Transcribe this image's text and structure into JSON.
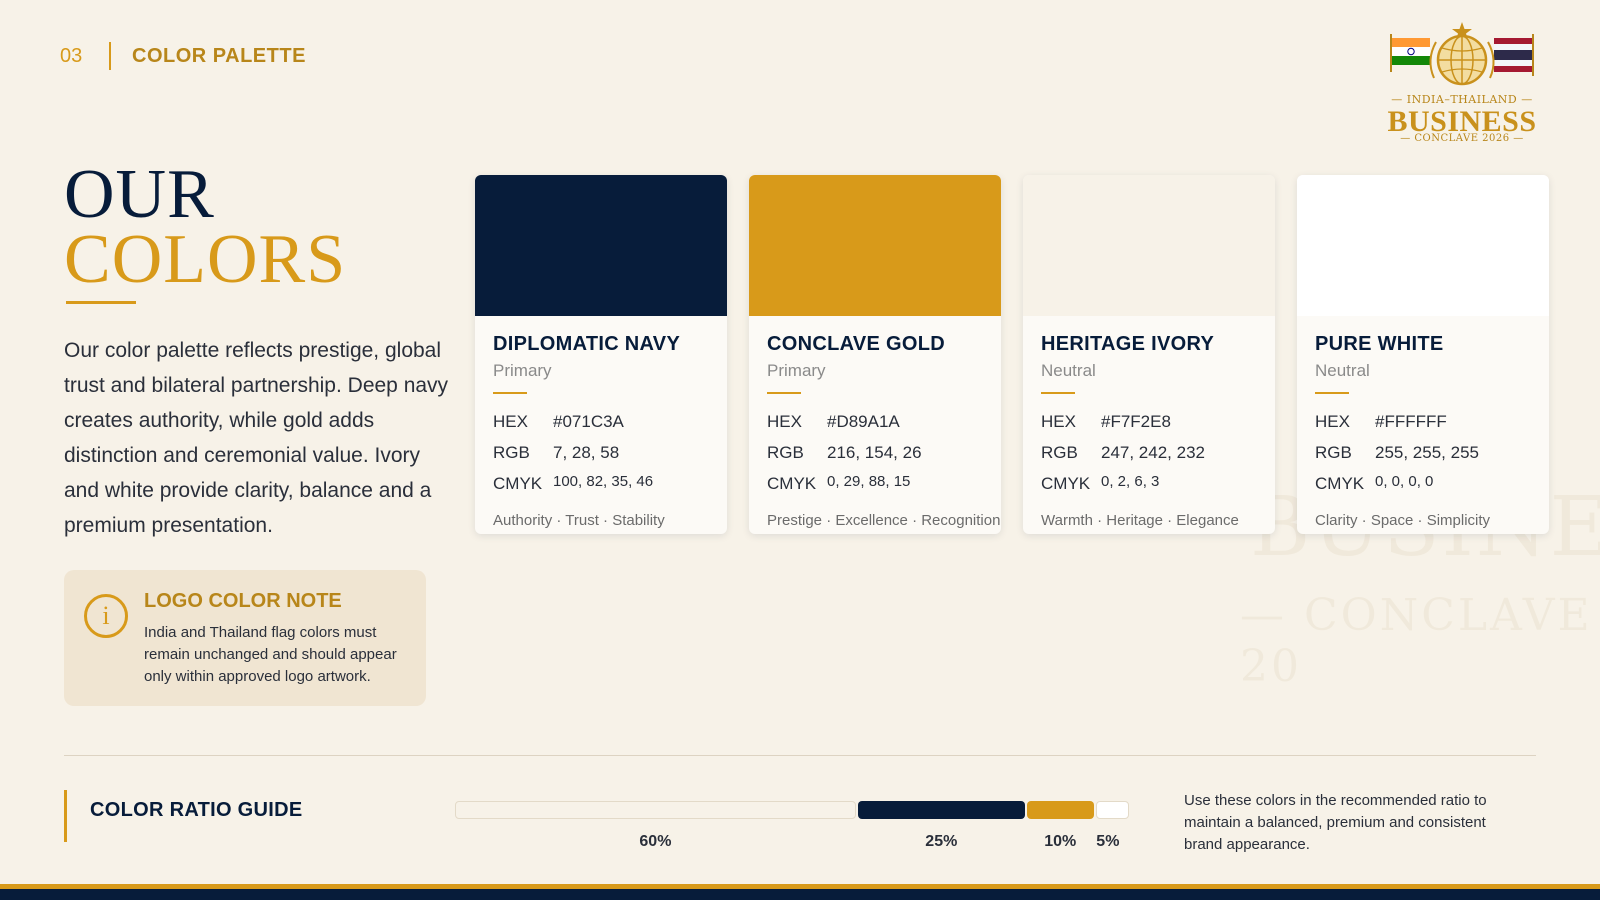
{
  "header": {
    "slide_number": "03",
    "section": "COLOR PALETTE"
  },
  "logo": {
    "line1": "— INDIA–THAILAND —",
    "line2": "BUSINESS",
    "line3": "— CONCLAVE 2026 —"
  },
  "watermark": {
    "line1": "BUSINE",
    "line2": "— CONCLAVE 20"
  },
  "heading": {
    "line1": "OUR",
    "line2": "COLORS"
  },
  "intro": "Our color palette reflects prestige, global trust and bilateral partnership. Deep navy creates authority, while gold adds distinction and ceremonial value. Ivory and white provide clarity, balance and a premium presentation.",
  "note": {
    "icon": "info-icon",
    "title": "LOGO COLOR NOTE",
    "text": "India and Thailand flag colors must remain unchanged and should appear only within approved logo artwork."
  },
  "spec_labels": {
    "hex": "HEX",
    "rgb": "RGB",
    "cmyk": "CMYK"
  },
  "cards": [
    {
      "name": "DIPLOMATIC NAVY",
      "category": "Primary",
      "color": "#071C3A",
      "hex": "#071C3A",
      "rgb": "7, 28, 58",
      "cmyk": "100, 82, 35, 46",
      "tags": "Authority · Trust · Stability"
    },
    {
      "name": "CONCLAVE GOLD",
      "category": "Primary",
      "color": "#D89A1A",
      "hex": "#D89A1A",
      "rgb": "216, 154, 26",
      "cmyk": "0, 29, 88, 15",
      "tags": "Prestige · Excellence · Recognition"
    },
    {
      "name": "HERITAGE IVORY",
      "category": "Neutral",
      "color": "#F7F2E8",
      "hex": "#F7F2E8",
      "rgb": "247, 242, 232",
      "cmyk": "0, 2, 6, 3",
      "tags": "Warmth · Heritage · Elegance"
    },
    {
      "name": "PURE WHITE",
      "category": "Neutral",
      "color": "#FFFFFF",
      "hex": "#FFFFFF",
      "rgb": "255, 255, 255",
      "cmyk": "0, 0, 0, 0",
      "tags": "Clarity · Space · Simplicity"
    }
  ],
  "ratio": {
    "title": "COLOR RATIO GUIDE",
    "segments": [
      {
        "label": "60%",
        "value": 60,
        "color": "#F7F2E8"
      },
      {
        "label": "25%",
        "value": 25,
        "color": "#071C3A"
      },
      {
        "label": "10%",
        "value": 10,
        "color": "#D89A1A"
      },
      {
        "label": "5%",
        "value": 5,
        "color": "#FFFFFF"
      }
    ],
    "description": "Use these colors in the recommended ratio to maintain a balanced, premium and consistent brand appearance."
  }
}
